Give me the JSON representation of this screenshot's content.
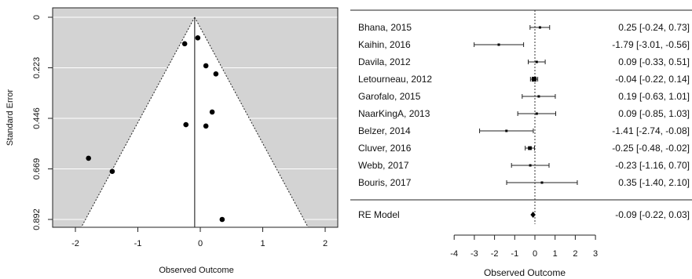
{
  "chart_data": [
    {
      "type": "scatter",
      "subtype": "funnel",
      "title": "",
      "xlabel": "Observed Outcome",
      "ylabel": "Standard Error",
      "xlim": [
        -2.3,
        2.1
      ],
      "ylim": [
        0,
        0.892
      ],
      "y_reversed": true,
      "x_ticks": [
        "-2",
        "-1",
        "0",
        "1",
        "2"
      ],
      "y_ticks": [
        "0",
        "0.223",
        "0.446",
        "0.669",
        "0.892"
      ],
      "pooled_estimate": -0.09,
      "grid": true,
      "colors": {
        "funnel_background": "#d3d3d3",
        "funnel_interior": "#ffffff",
        "points": "#000000"
      },
      "points": [
        {
          "x": -0.04,
          "y": 0.091
        },
        {
          "x": -0.25,
          "y": 0.117
        },
        {
          "x": 0.09,
          "y": 0.214
        },
        {
          "x": 0.25,
          "y": 0.25
        },
        {
          "x": 0.19,
          "y": 0.418
        },
        {
          "x": -0.23,
          "y": 0.474
        },
        {
          "x": 0.09,
          "y": 0.48
        },
        {
          "x": -1.79,
          "y": 0.622
        },
        {
          "x": -1.41,
          "y": 0.68
        },
        {
          "x": 0.35,
          "y": 0.892
        }
      ]
    },
    {
      "type": "forest",
      "xlabel": "Observed Outcome",
      "xlim": [
        -4,
        3
      ],
      "x_ticks": [
        "-4",
        "-3",
        "-2",
        "-1",
        "0",
        "1",
        "2",
        "3"
      ],
      "studies": [
        {
          "label": "Bhana, 2015",
          "est": 0.25,
          "lo": -0.24,
          "hi": 0.73,
          "ci_text": "0.25 [-0.24,  0.73]"
        },
        {
          "label": "Kaihin, 2016",
          "est": -1.79,
          "lo": -3.01,
          "hi": -0.56,
          "ci_text": "-1.79 [-3.01, -0.56]"
        },
        {
          "label": "Davila, 2012",
          "est": 0.09,
          "lo": -0.33,
          "hi": 0.51,
          "ci_text": "0.09 [-0.33,  0.51]"
        },
        {
          "label": "Letourneau, 2012",
          "est": -0.04,
          "lo": -0.22,
          "hi": 0.14,
          "ci_text": "-0.04 [-0.22,  0.14]"
        },
        {
          "label": "Garofalo, 2015",
          "est": 0.19,
          "lo": -0.63,
          "hi": 1.01,
          "ci_text": "0.19 [-0.63,  1.01]"
        },
        {
          "label": "NaarKingA, 2013",
          "est": 0.09,
          "lo": -0.85,
          "hi": 1.03,
          "ci_text": "0.09 [-0.85,  1.03]"
        },
        {
          "label": "Belzer, 2014",
          "est": -1.41,
          "lo": -2.74,
          "hi": -0.08,
          "ci_text": "-1.41 [-2.74, -0.08]"
        },
        {
          "label": "Cluver, 2016",
          "est": -0.25,
          "lo": -0.48,
          "hi": -0.02,
          "ci_text": "-0.25 [-0.48, -0.02]"
        },
        {
          "label": "Webb, 2017",
          "est": -0.23,
          "lo": -1.16,
          "hi": 0.7,
          "ci_text": "-0.23 [-1.16,  0.70]"
        },
        {
          "label": "Bouris, 2017",
          "est": 0.35,
          "lo": -1.4,
          "hi": 2.1,
          "ci_text": "0.35 [-1.40,  2.10]"
        }
      ],
      "summary": {
        "label": "RE Model",
        "est": -0.09,
        "lo": -0.22,
        "hi": 0.03,
        "ci_text": "-0.09 [-0.22,  0.03]"
      }
    }
  ]
}
